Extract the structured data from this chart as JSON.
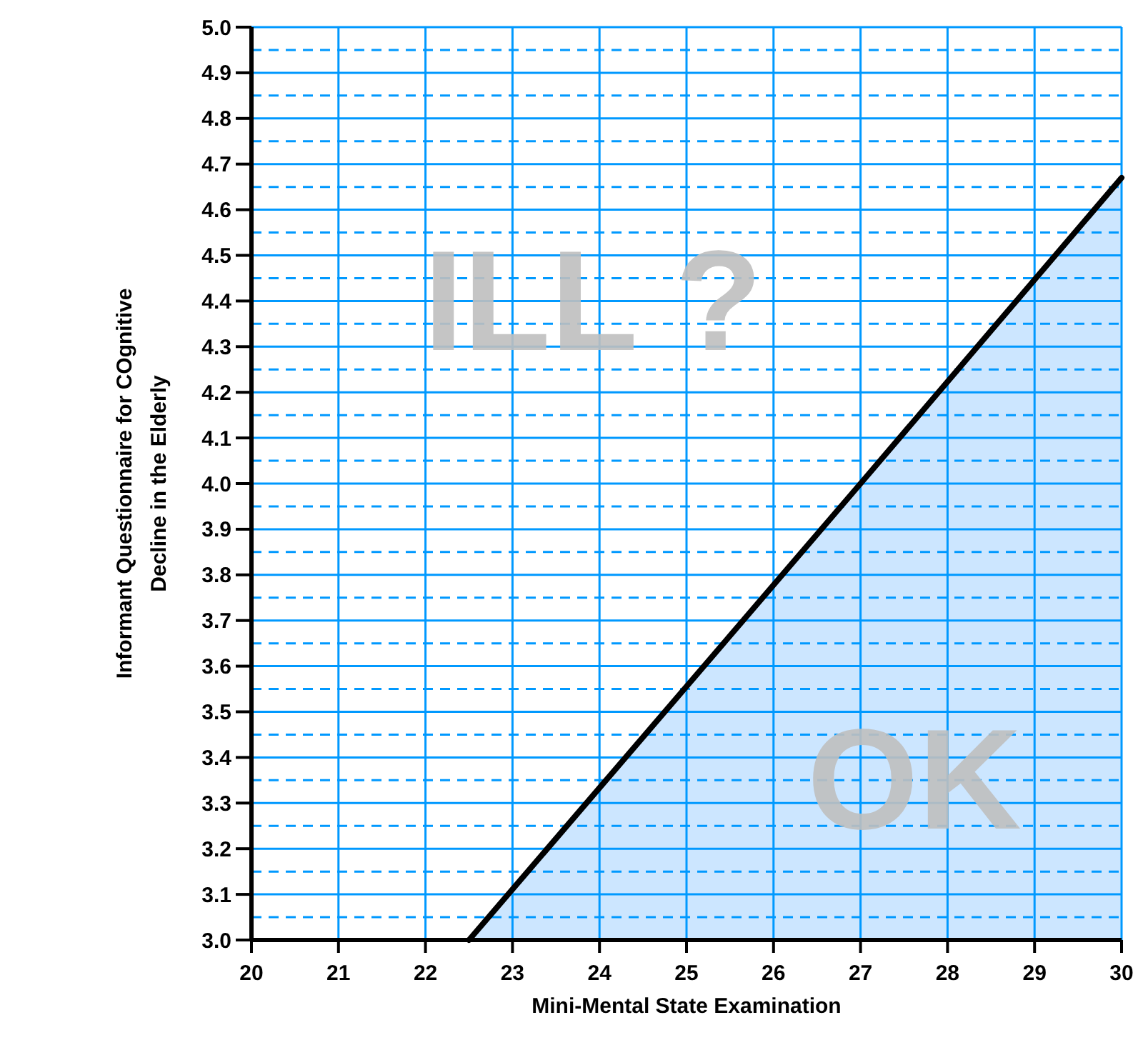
{
  "chart_data": {
    "type": "area",
    "xlabel": "Mini-Mental State Examination",
    "ylabel": "Informant Questionnaire for COgnitive\nDecline in the Elderly",
    "xlim": [
      20,
      30
    ],
    "xticks": [
      20,
      21,
      22,
      23,
      24,
      25,
      26,
      27,
      28,
      29,
      30
    ],
    "ylim": [
      3,
      5
    ],
    "yticks": [
      {
        "value": 3,
        "label": "3.0"
      },
      {
        "value": 3.05,
        "label": null
      },
      {
        "value": 3.1,
        "label": "3.1"
      },
      {
        "value": 3.15,
        "label": null
      },
      {
        "value": 3.2,
        "label": "3.2"
      },
      {
        "value": 3.25,
        "label": null
      },
      {
        "value": 3.3,
        "label": "3.3"
      },
      {
        "value": 3.35,
        "label": null
      },
      {
        "value": 3.4,
        "label": "3.4"
      },
      {
        "value": 3.45,
        "label": null
      },
      {
        "value": 3.5,
        "label": "3.5"
      },
      {
        "value": 3.55,
        "label": null
      },
      {
        "value": 3.6,
        "label": "3.6"
      },
      {
        "value": 3.65,
        "label": null
      },
      {
        "value": 3.7,
        "label": "3.7"
      },
      {
        "value": 3.75,
        "label": null
      },
      {
        "value": 3.8,
        "label": "3.8"
      },
      {
        "value": 3.85,
        "label": null
      },
      {
        "value": 3.9,
        "label": "3.9"
      },
      {
        "value": 3.95,
        "label": null
      },
      {
        "value": 4,
        "label": "4.0"
      },
      {
        "value": 4.05,
        "label": null
      },
      {
        "value": 4.1,
        "label": "4.1"
      },
      {
        "value": 4.15,
        "label": null
      },
      {
        "value": 4.2,
        "label": "4.2"
      },
      {
        "value": 4.25,
        "label": null
      },
      {
        "value": 4.3,
        "label": "4.3"
      },
      {
        "value": 4.35,
        "label": null
      },
      {
        "value": 4.4,
        "label": "4.4"
      },
      {
        "value": 4.45,
        "label": null
      },
      {
        "value": 4.5,
        "label": "4.5"
      },
      {
        "value": 4.55,
        "label": null
      },
      {
        "value": 4.6,
        "label": "4.6"
      },
      {
        "value": 4.65,
        "label": null
      },
      {
        "value": 4.7,
        "label": "4.7"
      },
      {
        "value": 4.75,
        "label": null
      },
      {
        "value": 4.8,
        "label": "4.8"
      },
      {
        "value": 4.85,
        "label": null
      },
      {
        "value": 4.9,
        "label": "4.9"
      },
      {
        "value": 4.95,
        "label": null
      },
      {
        "value": 5,
        "label": "5.0"
      }
    ],
    "grid": true,
    "series": [
      {
        "color": "#cce6ff",
        "x": [
          22.5,
          27,
          30
        ],
        "values": [
          3.0,
          4.0,
          4.67
        ]
      }
    ],
    "annotations": [
      "ILL ?",
      "OK"
    ]
  }
}
